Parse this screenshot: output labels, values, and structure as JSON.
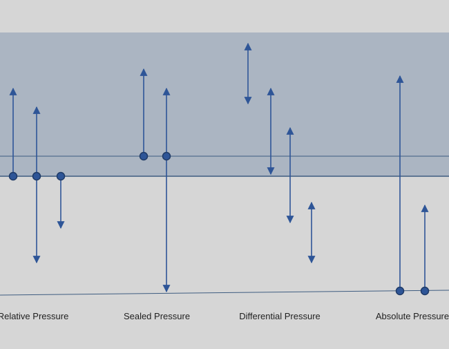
{
  "colors": {
    "background": "#d6d6d6",
    "atmosphere_band": "#abb5c2",
    "reference_line": "#3e5c80",
    "accent": "#2e5597",
    "point_stroke": "#1f3a66"
  },
  "labels": {
    "relative": "Relative Pressure",
    "sealed": "Sealed Pressure",
    "differential": "Differential Pressure",
    "absolute": "Absolute Pressure"
  },
  "diagram": {
    "relative": {
      "points": 3,
      "arrows": [
        "up",
        "up-and-down",
        "down"
      ]
    },
    "sealed": {
      "points": 2,
      "arrows": [
        "up",
        "up-and-down"
      ]
    },
    "differential": {
      "points": 0,
      "arrows": [
        "up-and-down",
        "up-and-down",
        "up-and-down",
        "up-and-down"
      ]
    },
    "absolute": {
      "points": 2,
      "arrows": [
        "up",
        "up"
      ]
    }
  }
}
